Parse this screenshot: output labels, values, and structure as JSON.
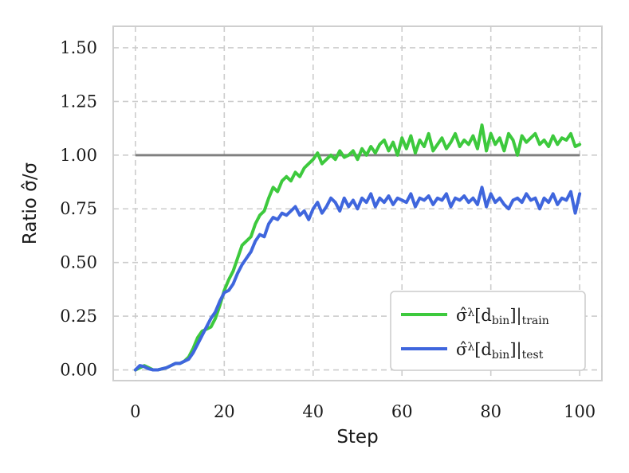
{
  "chart_data": {
    "type": "line",
    "xlabel": "Step",
    "ylabel": "Ratio σ̂/σ",
    "xlim": [
      -5,
      105
    ],
    "ylim": [
      -0.05,
      1.6
    ],
    "xticks": [
      0,
      20,
      40,
      60,
      80,
      100
    ],
    "yticks": [
      0.0,
      0.25,
      0.5,
      0.75,
      1.0,
      1.25,
      1.5
    ],
    "xtick_labels": [
      "0",
      "20",
      "40",
      "60",
      "80",
      "100"
    ],
    "ytick_labels": [
      "0.00",
      "0.25",
      "0.50",
      "0.75",
      "1.00",
      "1.25",
      "1.50"
    ],
    "grid": true,
    "legend_position": "lower-right",
    "reference_line": {
      "y": 1.0,
      "color": "#808080"
    },
    "x": [
      0,
      1,
      2,
      3,
      4,
      5,
      6,
      7,
      8,
      9,
      10,
      11,
      12,
      13,
      14,
      15,
      16,
      17,
      18,
      19,
      20,
      21,
      22,
      23,
      24,
      25,
      26,
      27,
      28,
      29,
      30,
      31,
      32,
      33,
      34,
      35,
      36,
      37,
      38,
      39,
      40,
      41,
      42,
      43,
      44,
      45,
      46,
      47,
      48,
      49,
      50,
      51,
      52,
      53,
      54,
      55,
      56,
      57,
      58,
      59,
      60,
      61,
      62,
      63,
      64,
      65,
      66,
      67,
      68,
      69,
      70,
      71,
      72,
      73,
      74,
      75,
      76,
      77,
      78,
      79,
      80,
      81,
      82,
      83,
      84,
      85,
      86,
      87,
      88,
      89,
      90,
      91,
      92,
      93,
      94,
      95,
      96,
      97,
      98,
      99,
      100
    ],
    "series": [
      {
        "name": "train",
        "legend_main": "σ̂",
        "legend_sup": "λ",
        "legend_mid": "[d",
        "legend_mid_sub": "bin",
        "legend_end": "]|",
        "legend_sub": "train",
        "color": "#3dc93d",
        "values": [
          0.0,
          0.01,
          0.02,
          0.01,
          0.0,
          0.0,
          0.005,
          0.01,
          0.02,
          0.03,
          0.03,
          0.04,
          0.06,
          0.1,
          0.15,
          0.18,
          0.19,
          0.2,
          0.24,
          0.3,
          0.37,
          0.42,
          0.46,
          0.52,
          0.58,
          0.6,
          0.62,
          0.68,
          0.72,
          0.74,
          0.8,
          0.85,
          0.83,
          0.88,
          0.9,
          0.88,
          0.92,
          0.9,
          0.94,
          0.96,
          0.98,
          1.01,
          0.96,
          0.98,
          1.0,
          0.98,
          1.02,
          0.99,
          1.0,
          1.02,
          0.98,
          1.03,
          1.0,
          1.04,
          1.01,
          1.05,
          1.07,
          1.02,
          1.06,
          1.0,
          1.08,
          1.03,
          1.09,
          1.01,
          1.07,
          1.04,
          1.1,
          1.02,
          1.05,
          1.08,
          1.03,
          1.06,
          1.1,
          1.04,
          1.07,
          1.05,
          1.09,
          1.03,
          1.14,
          1.02,
          1.1,
          1.05,
          1.08,
          1.02,
          1.1,
          1.07,
          1.0,
          1.09,
          1.06,
          1.08,
          1.1,
          1.05,
          1.07,
          1.04,
          1.09,
          1.05,
          1.08,
          1.07,
          1.1,
          1.04,
          1.05
        ]
      },
      {
        "name": "test",
        "legend_main": "σ̂",
        "legend_sup": "λ",
        "legend_mid": "[d",
        "legend_mid_sub": "bin",
        "legend_end": "]|",
        "legend_sub": "test",
        "color": "#3f66dd",
        "values": [
          0.0,
          0.02,
          0.015,
          0.005,
          0.0,
          0.0,
          0.005,
          0.01,
          0.02,
          0.03,
          0.03,
          0.04,
          0.05,
          0.08,
          0.12,
          0.16,
          0.2,
          0.24,
          0.27,
          0.32,
          0.36,
          0.37,
          0.4,
          0.45,
          0.49,
          0.52,
          0.55,
          0.6,
          0.63,
          0.62,
          0.68,
          0.71,
          0.7,
          0.73,
          0.72,
          0.74,
          0.76,
          0.72,
          0.74,
          0.7,
          0.75,
          0.78,
          0.73,
          0.76,
          0.8,
          0.78,
          0.74,
          0.8,
          0.76,
          0.79,
          0.75,
          0.8,
          0.78,
          0.82,
          0.76,
          0.8,
          0.78,
          0.81,
          0.77,
          0.8,
          0.79,
          0.78,
          0.82,
          0.76,
          0.8,
          0.79,
          0.81,
          0.77,
          0.8,
          0.79,
          0.82,
          0.76,
          0.8,
          0.79,
          0.81,
          0.78,
          0.8,
          0.77,
          0.85,
          0.76,
          0.82,
          0.78,
          0.8,
          0.77,
          0.75,
          0.79,
          0.8,
          0.78,
          0.82,
          0.79,
          0.8,
          0.75,
          0.8,
          0.78,
          0.82,
          0.77,
          0.8,
          0.79,
          0.83,
          0.73,
          0.82
        ]
      }
    ]
  }
}
